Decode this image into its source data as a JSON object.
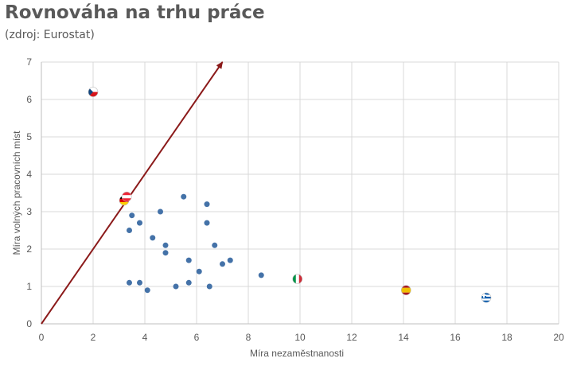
{
  "header": {
    "title": "Rovnováha na trhu práce",
    "subtitle": "(zdroj: Eurostat)"
  },
  "chart_data": {
    "type": "scatter",
    "title": "Rovnováha na trhu práce",
    "subtitle": "(zdroj: Eurostat)",
    "xlabel": "Míra nezaměstnanosti",
    "ylabel": "Míra volných pracovních míst",
    "xlim": [
      0,
      20
    ],
    "ylim": [
      0,
      7
    ],
    "xticks": [
      0,
      2,
      4,
      6,
      8,
      10,
      12,
      14,
      16,
      18,
      20
    ],
    "yticks": [
      0,
      1,
      2,
      3,
      4,
      5,
      6,
      7
    ],
    "grid": true,
    "legend": "none",
    "point_color": "#4472a8",
    "arrow_color": "#8b1a1a",
    "arrow": {
      "from": [
        0,
        0
      ],
      "to": [
        7,
        7
      ]
    },
    "points": [
      {
        "x": 3.4,
        "y": 1.1
      },
      {
        "x": 3.8,
        "y": 1.1
      },
      {
        "x": 4.1,
        "y": 0.9
      },
      {
        "x": 3.5,
        "y": 2.9
      },
      {
        "x": 3.4,
        "y": 2.5
      },
      {
        "x": 3.8,
        "y": 2.7
      },
      {
        "x": 4.3,
        "y": 2.3
      },
      {
        "x": 4.6,
        "y": 3.0
      },
      {
        "x": 4.8,
        "y": 2.1
      },
      {
        "x": 4.8,
        "y": 1.9
      },
      {
        "x": 5.2,
        "y": 1.0
      },
      {
        "x": 5.5,
        "y": 3.4
      },
      {
        "x": 5.7,
        "y": 1.7
      },
      {
        "x": 5.7,
        "y": 1.1
      },
      {
        "x": 6.1,
        "y": 1.4
      },
      {
        "x": 6.4,
        "y": 3.2
      },
      {
        "x": 6.4,
        "y": 2.7
      },
      {
        "x": 6.5,
        "y": 1.0
      },
      {
        "x": 6.7,
        "y": 2.1
      },
      {
        "x": 7.0,
        "y": 1.6
      },
      {
        "x": 7.3,
        "y": 1.7
      },
      {
        "x": 8.5,
        "y": 1.3
      }
    ],
    "flag_points": [
      {
        "x": 2.0,
        "y": 6.2,
        "flag": "czech-flag",
        "colors": [
          "#ffffff",
          "#d7141a",
          "#11457e"
        ]
      },
      {
        "x": 3.2,
        "y": 3.3,
        "flag": "german-flag",
        "colors": [
          "#000000",
          "#dd0000",
          "#ffce00"
        ]
      },
      {
        "x": 3.3,
        "y": 3.4,
        "flag": "austrian-flag",
        "colors": [
          "#ed2939",
          "#ffffff",
          "#ed2939"
        ]
      },
      {
        "x": 9.9,
        "y": 1.2,
        "flag": "italian-flag",
        "colors": [
          "#009246",
          "#ffffff",
          "#ce2b37"
        ]
      },
      {
        "x": 14.1,
        "y": 0.9,
        "flag": "spanish-flag",
        "colors": [
          "#aa151b",
          "#f1bf00",
          "#aa151b"
        ]
      },
      {
        "x": 17.2,
        "y": 0.7,
        "flag": "greek-flag",
        "colors": [
          "#0d5eaf",
          "#ffffff",
          "#0d5eaf"
        ]
      }
    ]
  }
}
